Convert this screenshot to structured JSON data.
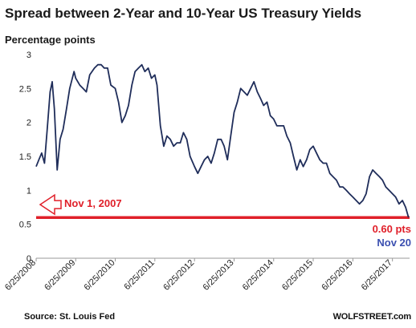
{
  "chart_data": {
    "type": "line",
    "title": "Spread between 2-Year and 10-Year US Treasury Yields",
    "ylabel": "Percentage points",
    "ylim": [
      0,
      3
    ],
    "yticks": [
      0,
      0.5,
      1,
      1.5,
      2,
      2.5,
      3
    ],
    "ytick_labels": [
      "0",
      "0.5",
      "1",
      "1.5",
      "2",
      "2.5",
      "3"
    ],
    "xlim": [
      "2008-06-25",
      "2017-11-30"
    ],
    "xtick_labels": [
      "6/25/2008",
      "6/25/2009",
      "6/25/2010",
      "6/25/2011",
      "6/25/2012",
      "6/25/2013",
      "6/25/2014",
      "6/25/2015",
      "6/25/2016",
      "6/25/2017"
    ],
    "xtick_dates": [
      "2008-06-25",
      "2009-06-25",
      "2010-06-25",
      "2011-06-25",
      "2012-06-25",
      "2013-06-25",
      "2014-06-25",
      "2015-06-25",
      "2016-06-25",
      "2017-06-25"
    ],
    "grid": false,
    "series": [
      {
        "color": "#1f2d5a",
        "points": [
          [
            "2008-06-25",
            1.35
          ],
          [
            "2008-07-20",
            1.45
          ],
          [
            "2008-08-15",
            1.55
          ],
          [
            "2008-09-10",
            1.4
          ],
          [
            "2008-10-05",
            1.9
          ],
          [
            "2008-11-01",
            2.45
          ],
          [
            "2008-11-20",
            2.6
          ],
          [
            "2008-12-10",
            2.2
          ],
          [
            "2009-01-05",
            1.3
          ],
          [
            "2009-02-01",
            1.75
          ],
          [
            "2009-03-01",
            1.9
          ],
          [
            "2009-04-01",
            2.2
          ],
          [
            "2009-05-01",
            2.5
          ],
          [
            "2009-06-10",
            2.75
          ],
          [
            "2009-06-25",
            2.65
          ],
          [
            "2009-08-01",
            2.55
          ],
          [
            "2009-09-01",
            2.5
          ],
          [
            "2009-10-01",
            2.45
          ],
          [
            "2009-11-01",
            2.7
          ],
          [
            "2009-12-15",
            2.8
          ],
          [
            "2010-01-15",
            2.85
          ],
          [
            "2010-02-15",
            2.85
          ],
          [
            "2010-03-15",
            2.8
          ],
          [
            "2010-04-15",
            2.8
          ],
          [
            "2010-05-15",
            2.55
          ],
          [
            "2010-06-25",
            2.5
          ],
          [
            "2010-07-25",
            2.3
          ],
          [
            "2010-08-25",
            2.0
          ],
          [
            "2010-09-25",
            2.1
          ],
          [
            "2010-10-25",
            2.25
          ],
          [
            "2010-11-25",
            2.55
          ],
          [
            "2010-12-25",
            2.75
          ],
          [
            "2011-01-25",
            2.8
          ],
          [
            "2011-02-25",
            2.85
          ],
          [
            "2011-03-25",
            2.75
          ],
          [
            "2011-04-25",
            2.8
          ],
          [
            "2011-05-25",
            2.65
          ],
          [
            "2011-06-25",
            2.7
          ],
          [
            "2011-07-15",
            2.55
          ],
          [
            "2011-08-15",
            1.95
          ],
          [
            "2011-09-15",
            1.65
          ],
          [
            "2011-10-15",
            1.8
          ],
          [
            "2011-11-15",
            1.75
          ],
          [
            "2011-12-15",
            1.65
          ],
          [
            "2012-01-15",
            1.7
          ],
          [
            "2012-02-15",
            1.7
          ],
          [
            "2012-03-15",
            1.85
          ],
          [
            "2012-04-15",
            1.75
          ],
          [
            "2012-05-15",
            1.5
          ],
          [
            "2012-06-25",
            1.35
          ],
          [
            "2012-07-25",
            1.25
          ],
          [
            "2012-08-25",
            1.35
          ],
          [
            "2012-09-25",
            1.45
          ],
          [
            "2012-10-25",
            1.5
          ],
          [
            "2012-11-25",
            1.4
          ],
          [
            "2012-12-25",
            1.55
          ],
          [
            "2013-01-25",
            1.75
          ],
          [
            "2013-02-25",
            1.75
          ],
          [
            "2013-03-25",
            1.65
          ],
          [
            "2013-04-25",
            1.45
          ],
          [
            "2013-05-25",
            1.8
          ],
          [
            "2013-06-25",
            2.15
          ],
          [
            "2013-07-25",
            2.3
          ],
          [
            "2013-08-25",
            2.5
          ],
          [
            "2013-09-25",
            2.45
          ],
          [
            "2013-10-25",
            2.4
          ],
          [
            "2013-11-25",
            2.5
          ],
          [
            "2013-12-25",
            2.6
          ],
          [
            "2014-01-25",
            2.45
          ],
          [
            "2014-02-25",
            2.35
          ],
          [
            "2014-03-25",
            2.25
          ],
          [
            "2014-04-25",
            2.3
          ],
          [
            "2014-05-25",
            2.1
          ],
          [
            "2014-06-25",
            2.05
          ],
          [
            "2014-07-25",
            1.95
          ],
          [
            "2014-08-25",
            1.95
          ],
          [
            "2014-09-25",
            1.95
          ],
          [
            "2014-10-25",
            1.8
          ],
          [
            "2014-11-25",
            1.7
          ],
          [
            "2014-12-25",
            1.5
          ],
          [
            "2015-01-25",
            1.3
          ],
          [
            "2015-02-25",
            1.45
          ],
          [
            "2015-03-25",
            1.35
          ],
          [
            "2015-04-25",
            1.45
          ],
          [
            "2015-05-25",
            1.6
          ],
          [
            "2015-06-25",
            1.65
          ],
          [
            "2015-07-25",
            1.55
          ],
          [
            "2015-08-25",
            1.45
          ],
          [
            "2015-09-25",
            1.4
          ],
          [
            "2015-10-25",
            1.4
          ],
          [
            "2015-11-25",
            1.25
          ],
          [
            "2015-12-25",
            1.2
          ],
          [
            "2016-01-25",
            1.15
          ],
          [
            "2016-02-25",
            1.05
          ],
          [
            "2016-03-25",
            1.05
          ],
          [
            "2016-04-25",
            1.0
          ],
          [
            "2016-05-25",
            0.95
          ],
          [
            "2016-06-25",
            0.9
          ],
          [
            "2016-07-25",
            0.85
          ],
          [
            "2016-08-25",
            0.8
          ],
          [
            "2016-09-25",
            0.85
          ],
          [
            "2016-10-25",
            0.95
          ],
          [
            "2016-11-25",
            1.2
          ],
          [
            "2016-12-25",
            1.3
          ],
          [
            "2017-01-25",
            1.25
          ],
          [
            "2017-02-25",
            1.2
          ],
          [
            "2017-03-25",
            1.15
          ],
          [
            "2017-04-25",
            1.05
          ],
          [
            "2017-05-25",
            1.0
          ],
          [
            "2017-06-25",
            0.95
          ],
          [
            "2017-07-25",
            0.9
          ],
          [
            "2017-08-25",
            0.8
          ],
          [
            "2017-09-25",
            0.85
          ],
          [
            "2017-10-25",
            0.75
          ],
          [
            "2017-11-20",
            0.6
          ]
        ]
      }
    ],
    "reference_line": {
      "value": 0.6,
      "color": "#e0202a"
    },
    "annotations": [
      {
        "text": "Nov 1, 2007",
        "color": "#e0202a",
        "points_to_value": 0.79
      },
      {
        "text": "0.60 pts",
        "color": "#e0202a"
      },
      {
        "text": "Nov 20",
        "color": "#3b4fb0"
      }
    ],
    "source": "Source: St. Louis Fed",
    "brand": "WOLFSTREET.com"
  }
}
